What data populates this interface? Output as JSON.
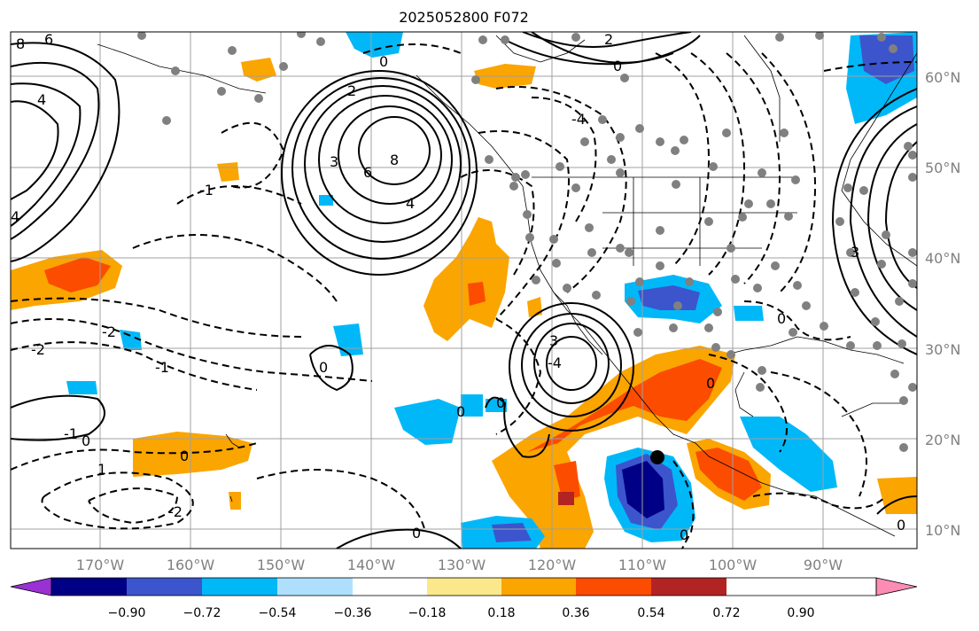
{
  "title": "2025052800 F072",
  "lat_labels": [
    "60°N",
    "50°N",
    "40°N",
    "30°N",
    "20°N",
    "10°N"
  ],
  "lon_labels": [
    "170°W",
    "160°W",
    "150°W",
    "140°W",
    "130°W",
    "120°W",
    "110°W",
    "100°W",
    "90°W"
  ],
  "colorbar": {
    "tick_labels": [
      "−0.90",
      "−0.72",
      "−0.54",
      "−0.36",
      "−0.18",
      "0.18",
      "0.36",
      "0.54",
      "0.72",
      "0.90"
    ],
    "colors": [
      "#9a31d4",
      "#000086",
      "#3c55cc",
      "#00b8f8",
      "#aee0fe",
      "#ffffff",
      "#fbe88a",
      "#fba500",
      "#fb4c00",
      "#b22424",
      "#fd8cb4"
    ]
  },
  "contour_labels": [
    "8",
    "6",
    "4",
    "2",
    "1",
    "0",
    "-1",
    "-2",
    "-3",
    "-4",
    "3"
  ],
  "marker": "black-dot"
}
